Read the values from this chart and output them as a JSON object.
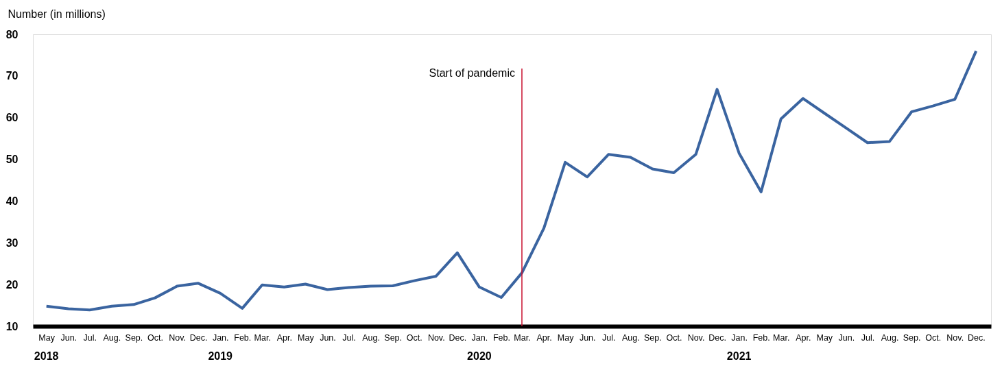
{
  "chart_data": {
    "type": "line",
    "ylabel": "Number (in millions)",
    "x": [
      "2018-05",
      "2018-06",
      "2018-07",
      "2018-08",
      "2018-09",
      "2018-10",
      "2018-11",
      "2018-12",
      "2019-01",
      "2019-02",
      "2019-03",
      "2019-04",
      "2019-05",
      "2019-06",
      "2019-07",
      "2019-08",
      "2019-09",
      "2019-10",
      "2019-11",
      "2019-12",
      "2020-01",
      "2020-02",
      "2020-03",
      "2020-04",
      "2020-05",
      "2020-06",
      "2020-07",
      "2020-08",
      "2020-09",
      "2020-10",
      "2020-11",
      "2020-12",
      "2021-01",
      "2021-02",
      "2021-03",
      "2021-04",
      "2021-05",
      "2021-06",
      "2021-07",
      "2021-08",
      "2021-09",
      "2021-10",
      "2021-11",
      "2021-12"
    ],
    "series": [
      {
        "color": "#3a64a0",
        "values": [
          14.8,
          14.2,
          13.9,
          14.8,
          15.2,
          16.8,
          19.6,
          20.3,
          17.9,
          14.3,
          19.9,
          19.4,
          20.1,
          18.8,
          19.3,
          19.6,
          19.7,
          20.9,
          22.0,
          27.6,
          19.4,
          16.9,
          22.8,
          33.5,
          49.3,
          45.8,
          51.2,
          50.5,
          47.7,
          46.8,
          51.2,
          66.8,
          51.5,
          42.2,
          59.7,
          64.6,
          61.1,
          57.5,
          54.0,
          54.3,
          61.4,
          62.8,
          64.4,
          76.0
        ]
      }
    ],
    "xlim": [
      "2018-04-12",
      "2021-12-22"
    ],
    "ylim": [
      10,
      80
    ],
    "yticks": [
      10,
      20,
      30,
      40,
      50,
      60,
      70,
      80
    ],
    "xticks": [
      {
        "value": "2018-05",
        "label": "May"
      },
      {
        "value": "2018-06",
        "label": "Jun."
      },
      {
        "value": "2018-07",
        "label": "Jul."
      },
      {
        "value": "2018-08",
        "label": "Aug."
      },
      {
        "value": "2018-09",
        "label": "Sep."
      },
      {
        "value": "2018-10",
        "label": "Oct."
      },
      {
        "value": "2018-11",
        "label": "Nov."
      },
      {
        "value": "2018-12",
        "label": "Dec."
      },
      {
        "value": "2019-01",
        "label": "Jan."
      },
      {
        "value": "2019-02",
        "label": "Feb."
      },
      {
        "value": "2019-03",
        "label": "Mar."
      },
      {
        "value": "2019-04",
        "label": "Apr."
      },
      {
        "value": "2019-05",
        "label": "May"
      },
      {
        "value": "2019-06",
        "label": "Jun."
      },
      {
        "value": "2019-07",
        "label": "Jul."
      },
      {
        "value": "2019-08",
        "label": "Aug."
      },
      {
        "value": "2019-09",
        "label": "Sep."
      },
      {
        "value": "2019-10",
        "label": "Oct."
      },
      {
        "value": "2019-11",
        "label": "Nov."
      },
      {
        "value": "2019-12",
        "label": "Dec."
      },
      {
        "value": "2020-01",
        "label": "Jan."
      },
      {
        "value": "2020-02",
        "label": "Feb."
      },
      {
        "value": "2020-03",
        "label": "Mar."
      },
      {
        "value": "2020-04",
        "label": "Apr."
      },
      {
        "value": "2020-05",
        "label": "May"
      },
      {
        "value": "2020-06",
        "label": "Jun."
      },
      {
        "value": "2020-07",
        "label": "Jul."
      },
      {
        "value": "2020-08",
        "label": "Aug."
      },
      {
        "value": "2020-09",
        "label": "Sep."
      },
      {
        "value": "2020-10",
        "label": "Oct."
      },
      {
        "value": "2020-11",
        "label": "Nov."
      },
      {
        "value": "2020-12",
        "label": "Dec."
      },
      {
        "value": "2021-01",
        "label": "Jan."
      },
      {
        "value": "2021-02",
        "label": "Feb."
      },
      {
        "value": "2021-03",
        "label": "Mar."
      },
      {
        "value": "2021-04",
        "label": "Apr."
      },
      {
        "value": "2021-05",
        "label": "May"
      },
      {
        "value": "2021-06",
        "label": "Jun."
      },
      {
        "value": "2021-07",
        "label": "Jul."
      },
      {
        "value": "2021-08",
        "label": "Aug."
      },
      {
        "value": "2021-09",
        "label": "Sep."
      },
      {
        "value": "2021-10",
        "label": "Oct."
      },
      {
        "value": "2021-11",
        "label": "Nov."
      },
      {
        "value": "2021-12",
        "label": "Dec."
      }
    ],
    "ref_lines": [
      {
        "axis": "x",
        "value": "2020-03",
        "label": "Start of pandemic",
        "color": "#c8102e"
      }
    ],
    "annotations": [
      "2018",
      "2019",
      "2020",
      "2021"
    ],
    "grid": false,
    "legend": false,
    "marker": "none",
    "line_style": "solid"
  }
}
